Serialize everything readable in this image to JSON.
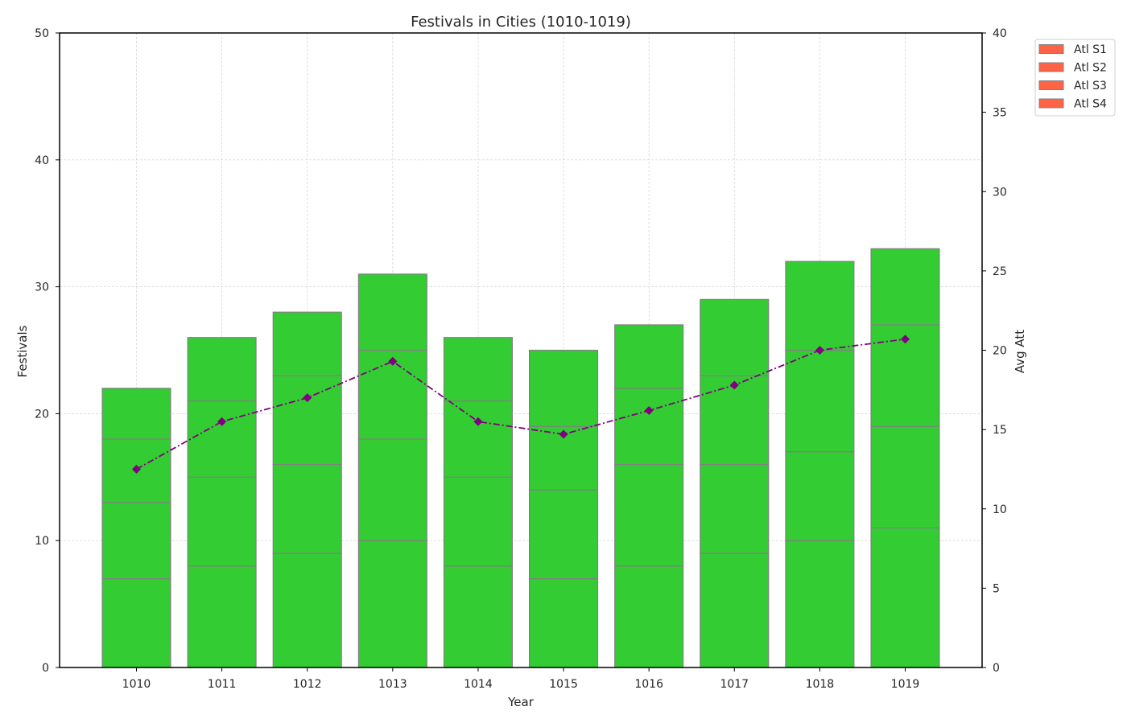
{
  "chart_data": {
    "type": "bar",
    "title": "Festivals in Cities (1010-1019)",
    "xlabel": "Year",
    "ylabel": "Festivals",
    "y2label": "Avg Att",
    "categories": [
      "1010",
      "1011",
      "1012",
      "1013",
      "1014",
      "1015",
      "1016",
      "1017",
      "1018",
      "1019"
    ],
    "stacked": true,
    "ylim": [
      0,
      50
    ],
    "y2lim": [
      0,
      40
    ],
    "yticks": [
      "0",
      "10",
      "20",
      "30",
      "40",
      "50"
    ],
    "y2ticks": [
      "0",
      "5",
      "10",
      "15",
      "20",
      "25",
      "30",
      "35",
      "40"
    ],
    "grid": true,
    "legend_position": "outside top-right",
    "series": [
      {
        "name": "Atl S1",
        "values": [
          7,
          8,
          9,
          10,
          8,
          7,
          8,
          9,
          10,
          11
        ]
      },
      {
        "name": "Atl S2",
        "values": [
          6,
          7,
          7,
          8,
          7,
          7,
          8,
          7,
          7,
          8
        ]
      },
      {
        "name": "Atl S3",
        "values": [
          5,
          6,
          7,
          7,
          6,
          5,
          6,
          7,
          8,
          8
        ]
      },
      {
        "name": "Atl S4",
        "values": [
          4,
          5,
          5,
          6,
          5,
          6,
          5,
          6,
          7,
          6
        ]
      }
    ],
    "line_series": {
      "axis": "right",
      "style": "dash-dot",
      "marker": "diamond",
      "values": [
        12.5,
        15.5,
        17.0,
        19.3,
        15.5,
        14.7,
        16.2,
        17.8,
        20.0,
        20.7
      ]
    },
    "colors": {
      "bar_fill": "#33cc33",
      "bar_edge": "#808080",
      "legend_swatch": "#ff6347",
      "line": "#800080",
      "grid": "#cccccc",
      "axis": "#000000"
    }
  }
}
